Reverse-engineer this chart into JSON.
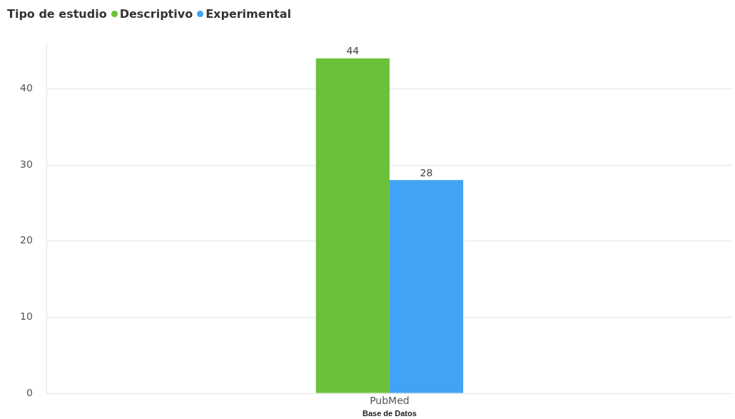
{
  "chart_data": {
    "type": "bar",
    "legend_title": "Tipo de estudio",
    "xlabel": "Base de Datos",
    "categories": [
      "PubMed"
    ],
    "series": [
      {
        "name": "Descriptivo",
        "color": "#6cc13a",
        "values": [
          44
        ]
      },
      {
        "name": "Experimental",
        "color": "#41a3f5",
        "values": [
          28
        ]
      }
    ],
    "ylim": [
      0,
      46
    ],
    "yticks": [
      0,
      10,
      20,
      30,
      40
    ],
    "grid": "y",
    "legend": "top left",
    "data_labels": true
  }
}
